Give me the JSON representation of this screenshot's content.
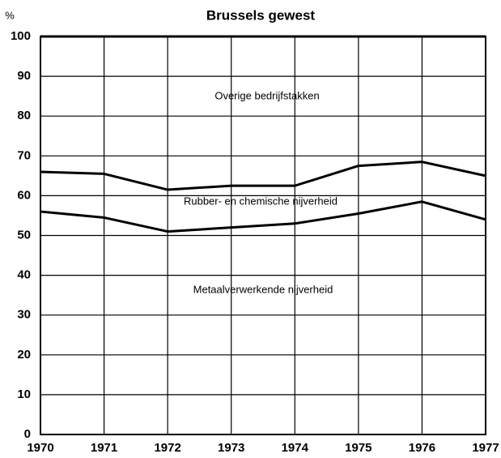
{
  "chart_data": {
    "type": "stacked_line",
    "title": "Brussels gewest",
    "ylabel": "%",
    "x": [
      1970,
      1971,
      1972,
      1973,
      1974,
      1975,
      1976,
      1977
    ],
    "xlim": [
      1970,
      1977
    ],
    "xticks": [
      1970,
      1971,
      1972,
      1973,
      1974,
      1975,
      1976,
      1977
    ],
    "ylim": [
      0,
      100
    ],
    "yticks": [
      0,
      10,
      20,
      30,
      40,
      50,
      60,
      70,
      80,
      90,
      100
    ],
    "grid": true,
    "color": "#000000",
    "series": [
      {
        "name": "Metaalverwerkende nijverheid",
        "values": [
          56,
          54.5,
          51,
          52,
          53,
          55.5,
          58.5,
          54
        ]
      },
      {
        "name": "Rubber- en chemische nijverheid",
        "values": [
          10,
          11,
          10.5,
          10.5,
          9.5,
          12,
          10,
          11
        ]
      },
      {
        "name": "Overige bedrijfstakken",
        "values": [
          34,
          34.5,
          38.5,
          37.5,
          37.5,
          32.5,
          31.5,
          35
        ]
      }
    ]
  }
}
